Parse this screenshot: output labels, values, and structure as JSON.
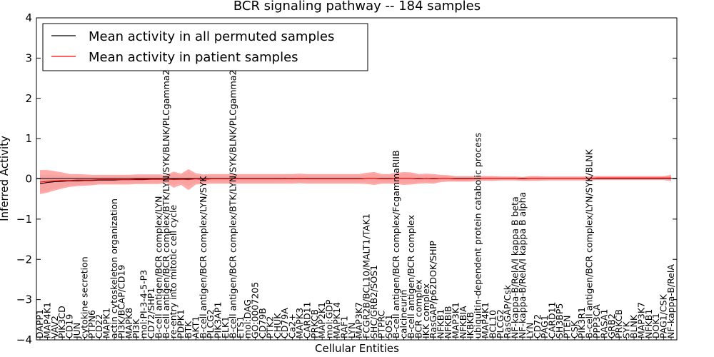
{
  "chart_data": {
    "type": "line",
    "title": "BCR signaling pathway -- 184 samples",
    "xlabel": "Cellular Entities",
    "ylabel": "Inferred Activity",
    "ylim": [
      -4,
      4
    ],
    "yticks": [
      -4,
      -3,
      -2,
      -1,
      0,
      1,
      2,
      3,
      4
    ],
    "legend_position": "top-left",
    "colors": {
      "permuted": "#000000",
      "patient": "#ff0000",
      "patient_band": "#ff8c8c",
      "permuted_band": "#bdbdbd"
    },
    "categories": [
      "DAPP1",
      "MAP4K1",
      "VAV2",
      "PIK3CD",
      "CD19",
      "JUN",
      "cytokine secretion",
      "PTPN6",
      "CD22",
      "MAPK1",
      "actin cytoskeleton organization",
      "PI3K/BCAP/CD19",
      "MAPK8",
      "PI3K",
      "mol:PI-3-4-5-P3",
      "CD72/SHP1",
      "B-cell antigen/BCR complex/LYN",
      "B-cell antigen/BCR complex/BTK/LYN/SYK/BLNK/PLCgamma2",
      "re-entry into mitotic cell cycle",
      "PDPK1",
      "BTK",
      "AKT1",
      "B-cell antigen/BCR complex/LYN/SYK",
      "PLCG2",
      "PIK3AP1",
      "ELK1",
      "B-cell antigen/BCR complex/BTK/LYN/SYK/BLNK/PLCgamma2",
      "ETS1",
      "mol:DAG",
      "GO:0007205",
      "CD79B",
      "PTK2",
      "CHUK",
      "CD79A",
      "Ca2+",
      "MAPK3",
      "CARD11",
      "PRKCB",
      "MAP2K1",
      "mol:GDP",
      "MAPK14",
      "RAF1",
      "LYN",
      "MAP3K7",
      "FCGR2B/BCL10/MALT1/TAK1",
      "SHC/GRB2/SOS1",
      "PTPRC",
      "SOS1",
      "B-cell antigen/BCR complex/FcgammaRIIB",
      "calcineurin",
      "B-cell antigen/BCR complex",
      "BCR complex",
      "IKK complex",
      "RasGAP/p62DOK/SHIP",
      "NFKB1",
      "NFKBIB",
      "MAP3K1",
      "NFKBIA",
      "IKBKB",
      "ubiquitin-dependent protein catabolic process",
      "MAP4K1",
      "BCL10",
      "PLCG2",
      "RasGAP/Csk",
      "NF-kappa-B/RelA/I kappa B beta",
      "NF-kappa-B/RelA/I kappa B alpha",
      "LYN",
      "CD72",
      "PAG1",
      "CARD11",
      "SH3BP5",
      "PTEN",
      "CSK",
      "PIK3R1",
      "B-cell antigen/BCR complex/LYN/SYK/BLNK",
      "PPP3CA",
      "RASA1",
      "GRB2",
      "PRKCB",
      "SYK",
      "BLNK",
      "MAP3K7",
      "NFKB1",
      "DOK1",
      "PAG1/CSK",
      "NF-kappa-B/RelA"
    ],
    "series": [
      {
        "name": "Mean activity in all permuted samples",
        "values": [
          -0.12,
          -0.09,
          -0.07,
          -0.06,
          -0.05,
          -0.05,
          -0.04,
          -0.04,
          -0.03,
          -0.03,
          -0.03,
          -0.02,
          -0.02,
          -0.02,
          -0.02,
          -0.01,
          -0.01,
          -0.01,
          -0.01,
          -0.01,
          0,
          0,
          -0.01,
          0,
          0,
          0,
          0,
          0,
          0,
          0,
          0,
          0,
          0,
          0.01,
          0,
          0,
          0,
          0,
          0,
          0,
          0,
          0,
          0,
          0,
          0.01,
          0.01,
          0,
          0,
          0.01,
          0.01,
          0.01,
          0,
          0.01,
          0,
          0.01,
          0.01,
          0,
          0,
          0,
          0.01,
          0.01,
          0.01,
          0.01,
          0.01,
          0.01,
          0,
          0.01,
          0.01,
          0.01,
          0.01,
          0.01,
          0.01,
          0.01,
          0.01,
          0.01,
          0.02,
          0.02,
          0.02,
          0.02,
          0.02,
          0.02,
          0.02,
          0.02,
          0.02,
          0.02,
          0.02
        ]
      },
      {
        "name": "Mean activity in patient samples",
        "values": [
          -0.08,
          -0.06,
          -0.05,
          -0.04,
          -0.04,
          -0.03,
          -0.03,
          -0.03,
          -0.02,
          -0.02,
          -0.02,
          -0.02,
          -0.02,
          -0.01,
          -0.01,
          -0.01,
          -0.01,
          0,
          -0.02,
          -0.01,
          -0.02,
          0,
          -0.01,
          0,
          0,
          0,
          0,
          0,
          0,
          0,
          0,
          0,
          0,
          0,
          0,
          0.01,
          0,
          0,
          0,
          0,
          0,
          0,
          0,
          0,
          0.01,
          0.01,
          0,
          0,
          0.01,
          0.01,
          0.01,
          0,
          0.01,
          0,
          0.01,
          0.01,
          0,
          0,
          0,
          0.01,
          0.01,
          0.01,
          0.01,
          0.01,
          0.01,
          0,
          0.01,
          0.01,
          0.01,
          0.01,
          0.01,
          0.01,
          0.01,
          0.01,
          0.01,
          0.02,
          0.02,
          0.02,
          0.02,
          0.02,
          0.02,
          0.02,
          0.02,
          0.02,
          0.02,
          0.02
        ],
        "band_halfwidth": [
          0.3,
          0.28,
          0.24,
          0.2,
          0.16,
          0.15,
          0.14,
          0.13,
          0.12,
          0.12,
          0.12,
          0.12,
          0.12,
          0.12,
          0.12,
          0.12,
          0.12,
          0.1,
          0.2,
          0.14,
          0.26,
          0.14,
          0.12,
          0.12,
          0.12,
          0.12,
          0.12,
          0.12,
          0.12,
          0.12,
          0.12,
          0.12,
          0.12,
          0.12,
          0.12,
          0.12,
          0.12,
          0.12,
          0.12,
          0.12,
          0.12,
          0.12,
          0.12,
          0.12,
          0.14,
          0.16,
          0.12,
          0.12,
          0.14,
          0.16,
          0.15,
          0.12,
          0.12,
          0.12,
          0.09,
          0.08,
          0.07,
          0.07,
          0.07,
          0.06,
          0.06,
          0.06,
          0.05,
          0.05,
          0.05,
          0.05,
          0.06,
          0.06,
          0.05,
          0.05,
          0.05,
          0.05,
          0.05,
          0.05,
          0.05,
          0.05,
          0.05,
          0.05,
          0.05,
          0.05,
          0.05,
          0.05,
          0.05,
          0.05,
          0.05,
          0.08
        ]
      }
    ]
  }
}
